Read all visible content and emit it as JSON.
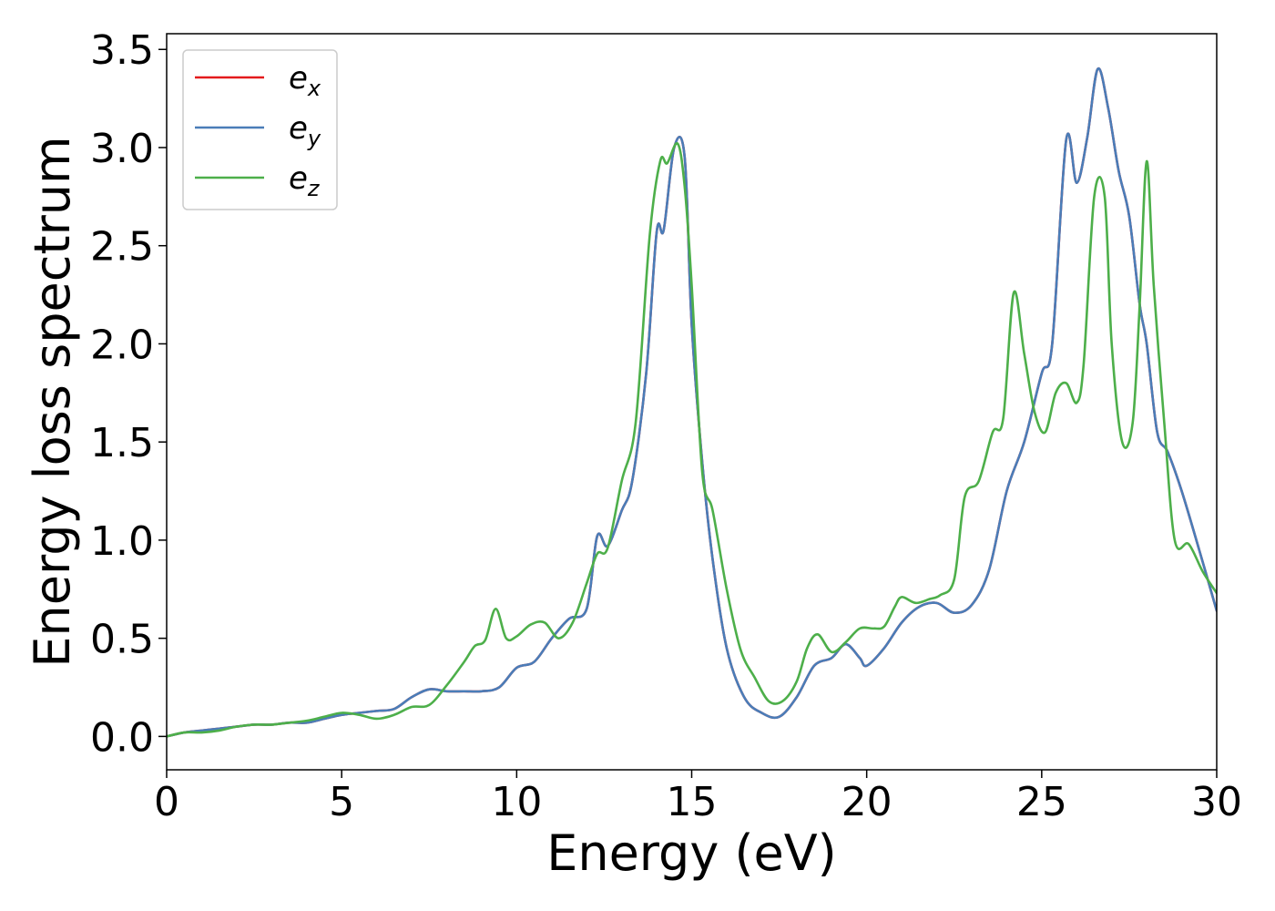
{
  "chart_data": {
    "type": "line",
    "title": "",
    "xlabel": "Energy (eV)",
    "ylabel": "Energy loss spectrum",
    "xlim": [
      0,
      30
    ],
    "ylim": [
      -0.17,
      3.58
    ],
    "xticks": [
      0,
      5,
      10,
      15,
      20,
      25,
      30
    ],
    "xtick_labels": [
      "0",
      "5",
      "10",
      "15",
      "20",
      "25",
      "30"
    ],
    "yticks": [
      0.0,
      0.5,
      1.0,
      1.5,
      2.0,
      2.5,
      3.0,
      3.5
    ],
    "ytick_labels": [
      "0.0",
      "0.5",
      "1.0",
      "1.5",
      "2.0",
      "2.5",
      "3.0",
      "3.5"
    ],
    "grid": false,
    "legend_position": "top-left",
    "series": [
      {
        "name_base": "e",
        "name_sub": "x",
        "color": "#e41a1c",
        "x": [
          0,
          0.5,
          1,
          1.5,
          2,
          2.5,
          3,
          3.5,
          4,
          4.5,
          5,
          5.5,
          6,
          6.5,
          7,
          7.5,
          8,
          8.5,
          9,
          9.5,
          10,
          10.5,
          11,
          11.5,
          12,
          12.3,
          12.6,
          13,
          13.3,
          13.7,
          14,
          14.2,
          14.5,
          14.8,
          15,
          15.3,
          15.6,
          16,
          16.5,
          17,
          17.5,
          18,
          18.5,
          19,
          19.4,
          19.8,
          20,
          20.5,
          21,
          21.5,
          22,
          22.5,
          23,
          23.5,
          24,
          24.5,
          25,
          25.3,
          25.7,
          26,
          26.3,
          26.6,
          26.9,
          27.2,
          27.5,
          27.8,
          28,
          28.3,
          28.6,
          29,
          29.5,
          30
        ],
        "y": [
          0,
          0.02,
          0.03,
          0.04,
          0.05,
          0.06,
          0.06,
          0.07,
          0.07,
          0.09,
          0.11,
          0.12,
          0.13,
          0.14,
          0.2,
          0.24,
          0.23,
          0.23,
          0.23,
          0.25,
          0.35,
          0.38,
          0.5,
          0.6,
          0.65,
          1.02,
          0.97,
          1.15,
          1.3,
          1.85,
          2.57,
          2.58,
          3.0,
          2.95,
          2.1,
          1.4,
          0.9,
          0.45,
          0.2,
          0.12,
          0.1,
          0.2,
          0.36,
          0.4,
          0.47,
          0.4,
          0.36,
          0.45,
          0.58,
          0.66,
          0.68,
          0.63,
          0.67,
          0.85,
          1.25,
          1.5,
          1.85,
          2.0,
          3.04,
          2.82,
          3.05,
          3.4,
          3.2,
          2.88,
          2.65,
          2.2,
          2.0,
          1.55,
          1.45,
          1.25,
          0.95,
          0.64
        ]
      },
      {
        "name_base": "e",
        "name_sub": "y",
        "color": "#4a7db8",
        "x": [
          0,
          0.5,
          1,
          1.5,
          2,
          2.5,
          3,
          3.5,
          4,
          4.5,
          5,
          5.5,
          6,
          6.5,
          7,
          7.5,
          8,
          8.5,
          9,
          9.5,
          10,
          10.5,
          11,
          11.5,
          12,
          12.3,
          12.6,
          13,
          13.3,
          13.7,
          14,
          14.2,
          14.5,
          14.8,
          15,
          15.3,
          15.6,
          16,
          16.5,
          17,
          17.5,
          18,
          18.5,
          19,
          19.4,
          19.8,
          20,
          20.5,
          21,
          21.5,
          22,
          22.5,
          23,
          23.5,
          24,
          24.5,
          25,
          25.3,
          25.7,
          26,
          26.3,
          26.6,
          26.9,
          27.2,
          27.5,
          27.8,
          28,
          28.3,
          28.6,
          29,
          29.5,
          30
        ],
        "y": [
          0,
          0.02,
          0.03,
          0.04,
          0.05,
          0.06,
          0.06,
          0.07,
          0.07,
          0.09,
          0.11,
          0.12,
          0.13,
          0.14,
          0.2,
          0.24,
          0.23,
          0.23,
          0.23,
          0.25,
          0.35,
          0.38,
          0.5,
          0.6,
          0.65,
          1.02,
          0.97,
          1.15,
          1.3,
          1.85,
          2.57,
          2.58,
          3.0,
          2.95,
          2.1,
          1.4,
          0.9,
          0.45,
          0.2,
          0.12,
          0.1,
          0.2,
          0.36,
          0.4,
          0.47,
          0.4,
          0.36,
          0.45,
          0.58,
          0.66,
          0.68,
          0.63,
          0.67,
          0.85,
          1.25,
          1.5,
          1.85,
          2.0,
          3.04,
          2.82,
          3.05,
          3.4,
          3.2,
          2.88,
          2.65,
          2.2,
          2.0,
          1.55,
          1.45,
          1.25,
          0.95,
          0.64
        ]
      },
      {
        "name_base": "e",
        "name_sub": "z",
        "color": "#4daf4a",
        "x": [
          0,
          0.5,
          1,
          1.5,
          2,
          2.5,
          3,
          3.5,
          4,
          4.5,
          5,
          5.5,
          6,
          6.5,
          7,
          7.5,
          8,
          8.5,
          8.8,
          9.1,
          9.4,
          9.7,
          10,
          10.4,
          10.8,
          11.2,
          11.6,
          12,
          12.3,
          12.6,
          13,
          13.4,
          13.8,
          14.1,
          14.3,
          14.6,
          14.8,
          15,
          15.3,
          15.6,
          16,
          16.4,
          16.8,
          17.2,
          17.6,
          18,
          18.3,
          18.6,
          19,
          19.4,
          19.8,
          20.2,
          20.5,
          20.8,
          21,
          21.4,
          21.8,
          22.1,
          22.5,
          22.8,
          23.2,
          23.6,
          23.9,
          24.2,
          24.5,
          24.8,
          25.1,
          25.4,
          25.7,
          26,
          26.2,
          26.5,
          26.8,
          27,
          27.3,
          27.6,
          27.8,
          28,
          28.2,
          28.5,
          28.8,
          29.2,
          29.6,
          30
        ],
        "y": [
          0,
          0.02,
          0.02,
          0.03,
          0.05,
          0.06,
          0.06,
          0.07,
          0.08,
          0.1,
          0.12,
          0.11,
          0.09,
          0.11,
          0.15,
          0.16,
          0.26,
          0.38,
          0.46,
          0.49,
          0.65,
          0.5,
          0.51,
          0.57,
          0.58,
          0.5,
          0.58,
          0.78,
          0.93,
          0.96,
          1.3,
          1.6,
          2.55,
          2.93,
          2.92,
          3.02,
          2.8,
          2.3,
          1.35,
          1.15,
          0.75,
          0.44,
          0.3,
          0.18,
          0.18,
          0.28,
          0.45,
          0.52,
          0.43,
          0.48,
          0.55,
          0.55,
          0.56,
          0.66,
          0.71,
          0.68,
          0.7,
          0.72,
          0.8,
          1.22,
          1.3,
          1.55,
          1.62,
          2.26,
          1.95,
          1.65,
          1.55,
          1.75,
          1.8,
          1.7,
          1.9,
          2.75,
          2.75,
          2.0,
          1.5,
          1.6,
          2.2,
          2.93,
          2.3,
          1.6,
          1.0,
          0.98,
          0.84,
          0.73
        ]
      }
    ]
  }
}
